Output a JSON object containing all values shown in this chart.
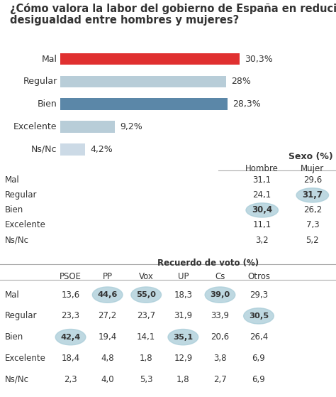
{
  "title_line1": "¿Cómo valora la labor del gobierno de España en reducir la",
  "title_line2": "desigualdad entre hombres y mujeres?",
  "bar_categories": [
    "Mal",
    "Regular",
    "Bien",
    "Excelente",
    "Ns/Nc"
  ],
  "bar_values": [
    30.3,
    28.0,
    28.3,
    9.2,
    4.2
  ],
  "bar_labels": [
    "30,3%",
    "28%",
    "28,3%",
    "9,2%",
    "4,2%"
  ],
  "bar_colors": [
    "#e03030",
    "#b8cdd8",
    "#5b87a8",
    "#b8cdd8",
    "#ccdae6"
  ],
  "bar_max": 33.0,
  "sexo_title": "Sexo (%)",
  "sexo_cols": [
    "Hombre",
    "Mujer"
  ],
  "sexo_rows": [
    "Mal",
    "Regular",
    "Bien",
    "Excelente",
    "Ns/Nc"
  ],
  "sexo_data": [
    [
      "31,1",
      "29,6"
    ],
    [
      "24,1",
      "31,7"
    ],
    [
      "30,4",
      "26,2"
    ],
    [
      "11,1",
      "7,3"
    ],
    [
      "3,2",
      "5,2"
    ]
  ],
  "sexo_highlighted": [
    [
      false,
      false
    ],
    [
      false,
      true
    ],
    [
      true,
      false
    ],
    [
      false,
      false
    ],
    [
      false,
      false
    ]
  ],
  "voto_title": "Recuerdo de voto (%)",
  "voto_cols": [
    "PSOE",
    "PP",
    "Vox",
    "UP",
    "Cs",
    "Otros"
  ],
  "voto_rows": [
    "Mal",
    "Regular",
    "Bien",
    "Excelente",
    "Ns/Nc"
  ],
  "voto_data": [
    [
      "13,6",
      "44,6",
      "55,0",
      "18,3",
      "39,0",
      "29,3"
    ],
    [
      "23,3",
      "27,2",
      "23,7",
      "31,9",
      "33,9",
      "30,5"
    ],
    [
      "42,4",
      "19,4",
      "14,1",
      "35,1",
      "20,6",
      "26,4"
    ],
    [
      "18,4",
      "4,8",
      "1,8",
      "12,9",
      "3,8",
      "6,9"
    ],
    [
      "2,3",
      "4,0",
      "5,3",
      "1,8",
      "2,7",
      "6,9"
    ]
  ],
  "voto_highlighted": [
    [
      false,
      true,
      true,
      false,
      true,
      false
    ],
    [
      false,
      false,
      false,
      false,
      false,
      true
    ],
    [
      true,
      false,
      false,
      true,
      false,
      false
    ],
    [
      false,
      false,
      false,
      false,
      false,
      false
    ],
    [
      false,
      false,
      false,
      false,
      false,
      false
    ]
  ],
  "highlight_color": "#a8ccd8",
  "bg_color": "#ffffff",
  "text_color": "#333333",
  "line_color": "#aaaaaa",
  "title_fontsize": 10.5,
  "bar_label_fontsize": 9.0,
  "table_fontsize": 8.5
}
